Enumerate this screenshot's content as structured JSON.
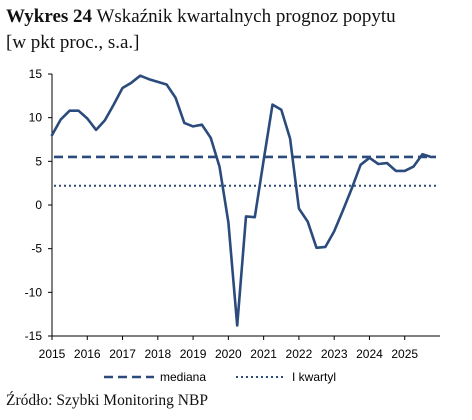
{
  "title_bold": "Wykres 24",
  "title_rest": "Wskaźnik kwartalnych prognoz popytu",
  "title_line2": "[w pkt proc., s.a.]",
  "source": "Źródło: Szybki Monitoring NBP",
  "colors": {
    "series": "#2a4b7c",
    "background": "#ffffff",
    "axis": "#000000"
  },
  "chart_data": {
    "type": "line",
    "title": "Wskaźnik kwartalnych prognoz popytu",
    "ylabel": "",
    "xlabel": "",
    "ylim": [
      -15,
      15
    ],
    "xlim": [
      2015,
      2026
    ],
    "y_ticks": [
      "15",
      "10",
      "5",
      "0",
      "-5",
      "-10",
      "-15"
    ],
    "y_tick_values": [
      15,
      10,
      5,
      0,
      -5,
      -10,
      -15
    ],
    "x_ticks": [
      "2015",
      "2016",
      "2017",
      "2018",
      "2019",
      "2020",
      "2021",
      "2022",
      "2023",
      "2024",
      "2025"
    ],
    "x_tick_values": [
      2015,
      2016,
      2017,
      2018,
      2019,
      2020,
      2021,
      2022,
      2023,
      2024,
      2025
    ],
    "legend_position": "bottom",
    "grid": false,
    "series": [
      {
        "style": "solid",
        "x": [
          2015.0,
          2015.25,
          2015.5,
          2015.75,
          2016.0,
          2016.25,
          2016.5,
          2016.75,
          2017.0,
          2017.25,
          2017.5,
          2017.75,
          2018.0,
          2018.25,
          2018.5,
          2018.75,
          2019.0,
          2019.25,
          2019.5,
          2019.75,
          2020.0,
          2020.25,
          2020.5,
          2020.75,
          2021.0,
          2021.25,
          2021.5,
          2021.75,
          2022.0,
          2022.25,
          2022.5,
          2022.75,
          2023.0,
          2023.25,
          2023.5,
          2023.75,
          2024.0,
          2024.25,
          2024.5,
          2024.75,
          2025.0,
          2025.25,
          2025.5,
          2025.75
        ],
        "values": [
          8.0,
          9.8,
          10.8,
          10.8,
          9.9,
          8.6,
          9.7,
          11.5,
          13.4,
          14.0,
          14.8,
          14.4,
          14.1,
          13.8,
          12.3,
          9.4,
          9.0,
          9.2,
          7.7,
          4.4,
          -2.0,
          -13.8,
          -1.3,
          -1.4,
          5.1,
          11.5,
          10.9,
          7.6,
          -0.4,
          -1.9,
          -4.9,
          -4.8,
          -3.0,
          -0.6,
          1.9,
          4.6,
          5.4,
          4.7,
          4.8,
          3.9,
          3.9,
          4.4,
          5.8,
          5.5
        ]
      },
      {
        "name": "mediana",
        "style": "dashed",
        "constant": 5.5
      },
      {
        "name": "I kwartyl",
        "style": "dotted",
        "constant": 2.2
      }
    ]
  }
}
